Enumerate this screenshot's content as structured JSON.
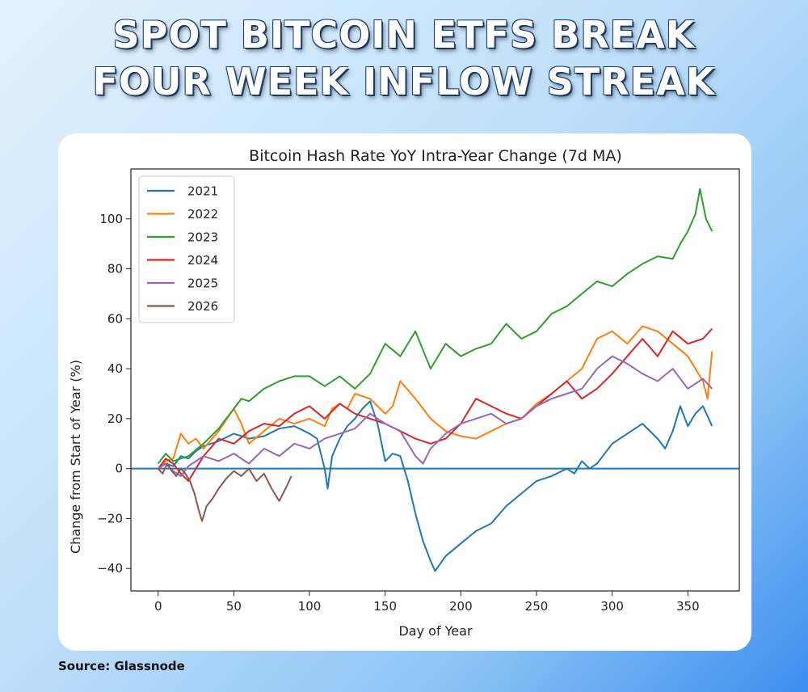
{
  "headline": {
    "line1": "SPOT BITCOIN ETFS BREAK",
    "line2": "FOUR WEEK INFLOW STREAK"
  },
  "source": "Source: Glassnode",
  "chart_data": {
    "type": "line",
    "title": "Bitcoin Hash Rate YoY Intra-Year Change (7d MA)",
    "xlabel": "Day of Year",
    "ylabel": "Change from Start of Year (%)",
    "xlim": [
      -18,
      384
    ],
    "ylim": [
      -49,
      120
    ],
    "xticks": [
      0,
      50,
      100,
      150,
      200,
      250,
      300,
      350
    ],
    "yticks": [
      -40,
      -20,
      0,
      20,
      40,
      60,
      80,
      100
    ],
    "grid": false,
    "legend": "top-left",
    "reference_line": {
      "y": 0,
      "color": "#1f77b4"
    },
    "series": [
      {
        "name": "2021",
        "color": "#1f77b4",
        "x": [
          0,
          5,
          10,
          15,
          20,
          25,
          30,
          40,
          50,
          60,
          70,
          80,
          90,
          100,
          105,
          110,
          112,
          115,
          120,
          125,
          130,
          135,
          140,
          145,
          150,
          155,
          160,
          165,
          170,
          175,
          180,
          183,
          190,
          200,
          210,
          220,
          230,
          240,
          250,
          260,
          270,
          275,
          280,
          285,
          290,
          300,
          310,
          320,
          330,
          335,
          340,
          345,
          350,
          355,
          360,
          366
        ],
        "y": [
          0,
          2,
          1,
          5,
          4,
          7,
          9,
          11,
          14,
          12,
          13,
          16,
          17,
          14,
          12,
          0,
          -8,
          5,
          12,
          17,
          20,
          24,
          27,
          18,
          3,
          6,
          5,
          -5,
          -18,
          -29,
          -37,
          -41,
          -35,
          -30,
          -25,
          -22,
          -15,
          -10,
          -5,
          -3,
          0,
          -2,
          3,
          0,
          2,
          10,
          14,
          18,
          12,
          8,
          15,
          25,
          17,
          22,
          25,
          17
        ]
      },
      {
        "name": "2022",
        "color": "#ff7f0e",
        "x": [
          0,
          5,
          10,
          15,
          20,
          25,
          30,
          40,
          50,
          55,
          60,
          70,
          80,
          90,
          100,
          110,
          115,
          120,
          125,
          130,
          140,
          150,
          155,
          160,
          170,
          180,
          190,
          200,
          210,
          220,
          230,
          240,
          250,
          260,
          270,
          280,
          290,
          300,
          310,
          320,
          330,
          340,
          350,
          360,
          363,
          366
        ],
        "y": [
          0,
          3,
          4,
          14,
          10,
          12,
          8,
          15,
          24,
          18,
          10,
          15,
          20,
          18,
          20,
          17,
          24,
          26,
          24,
          30,
          28,
          22,
          25,
          35,
          28,
          20,
          15,
          13,
          12,
          15,
          18,
          20,
          26,
          30,
          35,
          40,
          52,
          55,
          50,
          57,
          55,
          50,
          45,
          35,
          28,
          47
        ]
      },
      {
        "name": "2023",
        "color": "#2ca02c",
        "x": [
          0,
          5,
          10,
          20,
          30,
          40,
          50,
          55,
          60,
          70,
          80,
          90,
          100,
          110,
          120,
          130,
          140,
          150,
          160,
          170,
          180,
          190,
          200,
          210,
          220,
          230,
          240,
          250,
          260,
          270,
          280,
          290,
          300,
          310,
          320,
          330,
          340,
          345,
          350,
          355,
          358,
          362,
          366
        ],
        "y": [
          2,
          6,
          3,
          5,
          10,
          16,
          24,
          28,
          27,
          32,
          35,
          37,
          37,
          33,
          37,
          32,
          38,
          50,
          45,
          55,
          40,
          50,
          45,
          48,
          50,
          58,
          52,
          55,
          62,
          65,
          70,
          75,
          73,
          78,
          82,
          85,
          84,
          90,
          95,
          102,
          112,
          100,
          95
        ]
      },
      {
        "name": "2024",
        "color": "#d62728",
        "x": [
          0,
          5,
          10,
          15,
          20,
          25,
          30,
          40,
          50,
          60,
          70,
          80,
          90,
          100,
          110,
          120,
          130,
          140,
          150,
          160,
          170,
          180,
          190,
          200,
          210,
          220,
          230,
          240,
          250,
          260,
          270,
          280,
          290,
          300,
          310,
          320,
          330,
          340,
          350,
          360,
          366
        ],
        "y": [
          0,
          4,
          2,
          -2,
          -5,
          0,
          5,
          12,
          10,
          15,
          18,
          17,
          22,
          25,
          20,
          26,
          22,
          20,
          18,
          15,
          12,
          10,
          12,
          18,
          28,
          25,
          22,
          20,
          25,
          30,
          35,
          28,
          32,
          38,
          45,
          52,
          45,
          55,
          50,
          52,
          56
        ]
      },
      {
        "name": "2025",
        "color": "#9467bd",
        "x": [
          0,
          5,
          10,
          15,
          20,
          30,
          40,
          50,
          60,
          70,
          80,
          90,
          100,
          110,
          120,
          130,
          140,
          150,
          160,
          170,
          175,
          180,
          190,
          200,
          210,
          220,
          230,
          240,
          250,
          260,
          270,
          280,
          290,
          300,
          310,
          320,
          330,
          340,
          350,
          360,
          366
        ],
        "y": [
          0,
          2,
          -1,
          -3,
          1,
          5,
          3,
          6,
          2,
          8,
          5,
          10,
          8,
          12,
          14,
          16,
          22,
          18,
          15,
          5,
          2,
          8,
          14,
          18,
          20,
          22,
          18,
          20,
          25,
          28,
          30,
          32,
          40,
          45,
          42,
          38,
          35,
          40,
          32,
          36,
          32
        ]
      },
      {
        "name": "2026",
        "color": "#8c564b",
        "x": [
          0,
          3,
          6,
          9,
          12,
          15,
          18,
          21,
          24,
          27,
          29,
          32,
          36,
          40,
          45,
          50,
          55,
          60,
          65,
          70,
          75,
          80,
          85,
          88
        ],
        "y": [
          0,
          -2,
          2,
          -1,
          -3,
          0,
          -2,
          -5,
          -10,
          -17,
          -21,
          -15,
          -12,
          -8,
          -4,
          -1,
          -3,
          0,
          -5,
          -2,
          -8,
          -13,
          -7,
          -3
        ]
      }
    ]
  }
}
